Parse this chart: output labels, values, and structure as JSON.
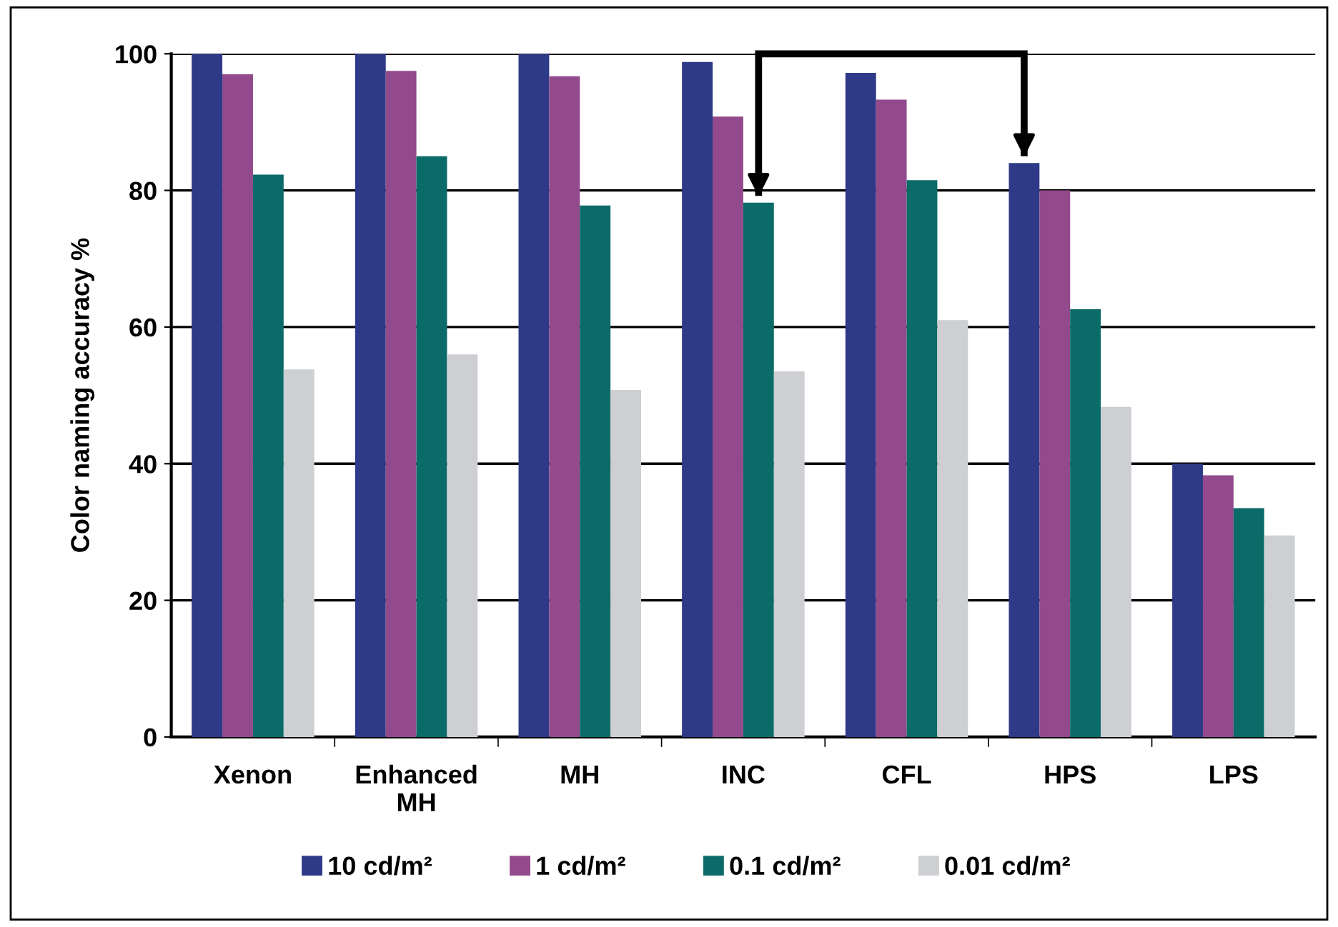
{
  "chart_data": {
    "type": "bar",
    "ylabel": "Color naming accuracy %",
    "categories": [
      "Xenon",
      "Enhanced\nMH",
      "MH",
      "INC",
      "CFL",
      "HPS",
      "LPS"
    ],
    "series": [
      {
        "name": "10 cd/m²",
        "color": "#2e3a87",
        "values": [
          100,
          100,
          100,
          98.8,
          97.2,
          84,
          40
        ]
      },
      {
        "name": "1 cd/m²",
        "color": "#924a8c",
        "values": [
          97,
          97.5,
          96.7,
          90.8,
          93.3,
          80,
          38.3
        ]
      },
      {
        "name": "0.1 cd/m²",
        "color": "#0b6b68",
        "values": [
          82.3,
          85,
          77.8,
          78.2,
          81.5,
          62.6,
          33.5
        ]
      },
      {
        "name": "0.01 cd/m²",
        "color": "#cdcfd3",
        "values": [
          53.8,
          56,
          50.8,
          53.5,
          61,
          48.3,
          29.5
        ]
      }
    ],
    "ylim": [
      0,
      100
    ],
    "yticks": [
      0,
      20,
      40,
      60,
      80,
      100
    ],
    "grid": "y",
    "legend": "bottom"
  }
}
